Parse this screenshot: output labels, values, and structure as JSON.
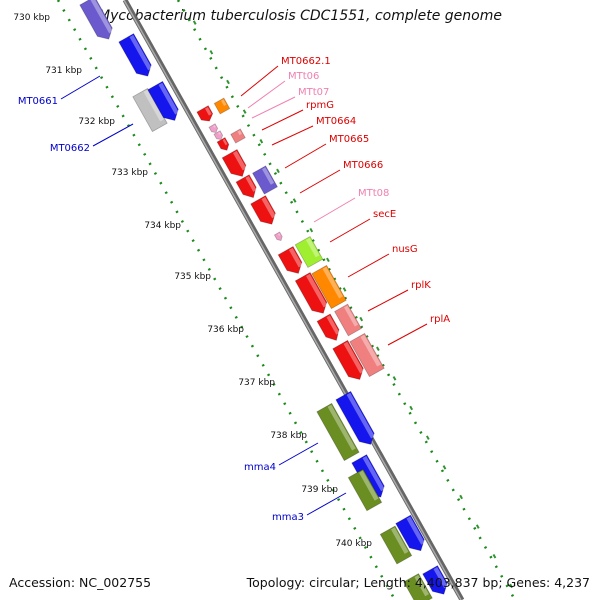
{
  "title": "Mycobacterium tuberculosis CDC1551, complete genome",
  "accession": "Accession: NC_002755",
  "topology": "Topology: circular; Length: 4,403,837 bp; Genes: 4,237",
  "kbp_labels": [
    "730 kbp",
    "731 kbp",
    "732 kbp",
    "733 kbp",
    "734 kbp",
    "735 kbp",
    "736 kbp",
    "737 kbp",
    "738 kbp",
    "739 kbp",
    "740 kbp"
  ],
  "gene_labels": [
    "MT0662.1",
    "MTt06",
    "MTt07",
    "rpmG",
    "MT0664",
    "MT0665",
    "MT0666",
    "MTt08",
    "secE",
    "nusG",
    "rplK",
    "rplA",
    "MT0661",
    "MT0662",
    "mma4",
    "mma3"
  ],
  "colors": {
    "blue": "#1515ee",
    "slate": "#6a5acd",
    "red": "#ee1111",
    "pink": "#f08080",
    "lightpink": "#f0a0c8",
    "orange": "#ff8800",
    "lime": "#a0ee30",
    "olive": "#6b8e23",
    "gray": "#c0c0c0",
    "backbone": "#808080",
    "tick": "#1a8a1a",
    "label_red": "#dd0000",
    "label_pink": "#f080b0",
    "label_blue": "#0000cc"
  }
}
